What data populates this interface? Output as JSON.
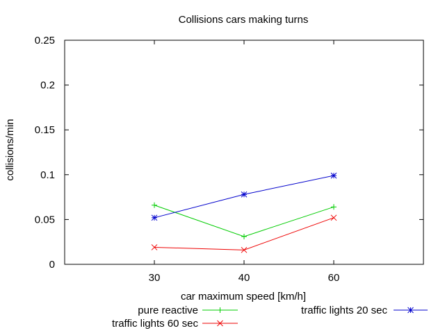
{
  "chart_data": {
    "type": "line",
    "title": "Collisions cars making turns",
    "xlabel": "car maximum speed [km/h]",
    "ylabel": "collisions/min",
    "categories": [
      "30",
      "40",
      "60"
    ],
    "xlim": [
      0,
      4
    ],
    "ylim": [
      0,
      0.25
    ],
    "yticks": [
      "0",
      "0.05",
      "0.1",
      "0.15",
      "0.2",
      "0.25"
    ],
    "grid": false,
    "legend_position": "bottom",
    "series": [
      {
        "name": "pure reactive",
        "values": [
          0.066,
          0.031,
          0.064
        ],
        "color": "#00cc00",
        "marker": "plus"
      },
      {
        "name": "traffic lights 60 sec",
        "values": [
          0.019,
          0.016,
          0.052
        ],
        "color": "#ee0000",
        "marker": "cross"
      },
      {
        "name": "traffic lights 20 sec",
        "values": [
          0.052,
          0.078,
          0.099
        ],
        "color": "#0000cc",
        "marker": "star"
      }
    ]
  }
}
